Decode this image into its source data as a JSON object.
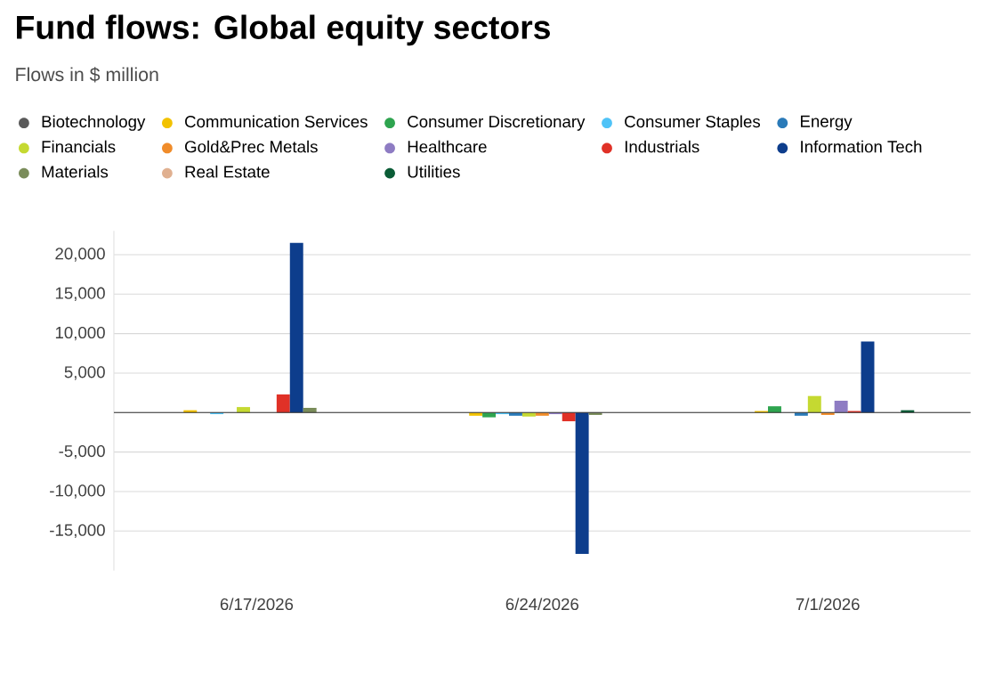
{
  "chart_data": {
    "type": "bar",
    "title": "Fund flows: Global equity sectors",
    "subtitle": "Flows in $ million",
    "categories": [
      "6/17/2026",
      "6/24/2026",
      "7/1/2026"
    ],
    "series": [
      {
        "name": "Biotechnology",
        "color": "#5a5a5a",
        "values": [
          0,
          0,
          0
        ]
      },
      {
        "name": "Communication Services",
        "color": "#f2c200",
        "values": [
          300,
          -400,
          200
        ]
      },
      {
        "name": "Consumer Discretionary",
        "color": "#2ea44f",
        "values": [
          0,
          -600,
          800
        ]
      },
      {
        "name": "Consumer Staples",
        "color": "#4fc3f7",
        "values": [
          -200,
          -200,
          0
        ]
      },
      {
        "name": "Energy",
        "color": "#2a7ab8",
        "values": [
          null,
          -400,
          -400
        ]
      },
      {
        "name": "Financials",
        "color": "#c5d931",
        "values": [
          700,
          -500,
          2100
        ]
      },
      {
        "name": "Gold&Prec Metals",
        "color": "#f08c2a",
        "values": [
          0,
          -400,
          -300
        ]
      },
      {
        "name": "Healthcare",
        "color": "#8e7cc3",
        "values": [
          0,
          -200,
          1500
        ]
      },
      {
        "name": "Industrials",
        "color": "#e03127",
        "values": [
          2300,
          -1100,
          200
        ]
      },
      {
        "name": "Information Tech",
        "color": "#0d3d8c",
        "values": [
          21500,
          -17900,
          9000
        ]
      },
      {
        "name": "Materials",
        "color": "#7a8c5a",
        "values": [
          600,
          -300,
          null
        ]
      },
      {
        "name": "Real Estate",
        "color": "#e0b090",
        "values": [
          0,
          null,
          0
        ]
      },
      {
        "name": "Utilities",
        "color": "#0a5c36",
        "values": [
          0,
          0,
          300
        ]
      }
    ],
    "ylim": [
      -20000,
      23000
    ],
    "yticks": [
      {
        "value": -15000,
        "label": "-15,000"
      },
      {
        "value": -10000,
        "label": "-10,000"
      },
      {
        "value": -5000,
        "label": "-5,000"
      },
      {
        "value": 0,
        "label": null
      },
      {
        "value": 5000,
        "label": "5,000"
      },
      {
        "value": 10000,
        "label": "10,000"
      },
      {
        "value": 15000,
        "label": "15,000"
      },
      {
        "value": 20000,
        "label": "20,000"
      }
    ],
    "grid": "y",
    "legend": "top"
  }
}
